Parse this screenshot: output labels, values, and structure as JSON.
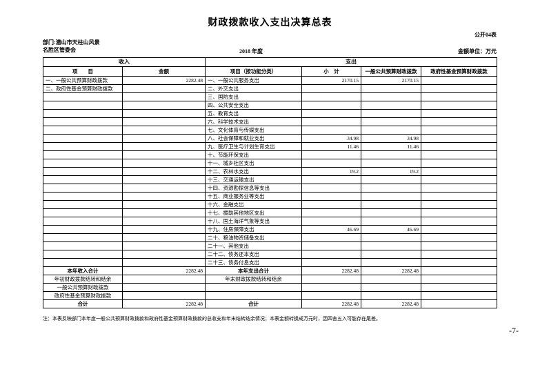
{
  "page": {
    "title": "财政拨款收入支出决算总表",
    "table_code": "公开04表",
    "department_line1": "部门:潜山市天柱山风景",
    "department_line2": "名胜区管委会",
    "year": "2018 年度",
    "unit": "金额单位：万元",
    "note": "注：本表反映部门本年度一般公共预算财政拨款和政府性基金预算财政拨款的总收支和年末结转结余情况；本表金额转换成万元时，因四舍五入可能存在尾差。",
    "page_number": "-7-"
  },
  "table": {
    "income_header": "收入",
    "expense_header": "支出",
    "columns": [
      "项　　目",
      "金额",
      "项目（按功能分类）",
      "小　计",
      "一般公共预算财政拨款",
      "政府性基金预算财政拨款"
    ],
    "rows": [
      {
        "style": "left",
        "income_item": "一、一般公共预算财政拨款",
        "income_amount": "2282.48",
        "expense_item": "一、一般公共服务支出",
        "subtotal": "2170.15",
        "general_budget": "2170.15",
        "gov_fund": ""
      },
      {
        "style": "left",
        "income_item": "二、政府性基金预算财政拨款",
        "income_amount": "",
        "expense_item": "二、外交支出",
        "subtotal": "",
        "general_budget": "",
        "gov_fund": ""
      },
      {
        "style": "left",
        "income_item": "",
        "income_amount": "",
        "expense_item": "三、国防支出",
        "subtotal": "",
        "general_budget": "",
        "gov_fund": ""
      },
      {
        "style": "left",
        "income_item": "",
        "income_amount": "",
        "expense_item": "四、公共安全支出",
        "subtotal": "",
        "general_budget": "",
        "gov_fund": ""
      },
      {
        "style": "left",
        "income_item": "",
        "income_amount": "",
        "expense_item": "五、教育支出",
        "subtotal": "",
        "general_budget": "",
        "gov_fund": ""
      },
      {
        "style": "left",
        "income_item": "",
        "income_amount": "",
        "expense_item": "六、科学技术支出",
        "subtotal": "",
        "general_budget": "",
        "gov_fund": ""
      },
      {
        "style": "left",
        "income_item": "",
        "income_amount": "",
        "expense_item": "七、文化体育与传媒支出",
        "subtotal": "",
        "general_budget": "",
        "gov_fund": ""
      },
      {
        "style": "left",
        "income_item": "",
        "income_amount": "",
        "expense_item": "八、社会保障和就业支出",
        "subtotal": "34.98",
        "general_budget": "34.98",
        "gov_fund": ""
      },
      {
        "style": "left",
        "income_item": "",
        "income_amount": "",
        "expense_item": "九、医疗卫生与计划生育支出",
        "subtotal": "11.46",
        "general_budget": "11.46",
        "gov_fund": ""
      },
      {
        "style": "left",
        "income_item": "",
        "income_amount": "",
        "expense_item": "十、节能环保支出",
        "subtotal": "",
        "general_budget": "",
        "gov_fund": ""
      },
      {
        "style": "left",
        "income_item": "",
        "income_amount": "",
        "expense_item": "十一、城乡社区支出",
        "subtotal": "",
        "general_budget": "",
        "gov_fund": ""
      },
      {
        "style": "left",
        "income_item": "",
        "income_amount": "",
        "expense_item": "十二、农林水支出",
        "subtotal": "19.2",
        "general_budget": "19.2",
        "gov_fund": ""
      },
      {
        "style": "left",
        "income_item": "",
        "income_amount": "",
        "expense_item": "十三、交通运输支出",
        "subtotal": "",
        "general_budget": "",
        "gov_fund": ""
      },
      {
        "style": "left",
        "income_item": "",
        "income_amount": "",
        "expense_item": "十四、资源勘探信息等支出",
        "subtotal": "",
        "general_budget": "",
        "gov_fund": ""
      },
      {
        "style": "left",
        "income_item": "",
        "income_amount": "",
        "expense_item": "十五、商业服务业等支出",
        "subtotal": "",
        "general_budget": "",
        "gov_fund": ""
      },
      {
        "style": "left",
        "income_item": "",
        "income_amount": "",
        "expense_item": "十六、金融支出",
        "subtotal": "",
        "general_budget": "",
        "gov_fund": ""
      },
      {
        "style": "left",
        "income_item": "",
        "income_amount": "",
        "expense_item": "十七、援助其他地区支出",
        "subtotal": "",
        "general_budget": "",
        "gov_fund": ""
      },
      {
        "style": "left",
        "income_item": "",
        "income_amount": "",
        "expense_item": "十八、国土海洋气象等支出",
        "subtotal": "",
        "general_budget": "",
        "gov_fund": ""
      },
      {
        "style": "left",
        "income_item": "",
        "income_amount": "",
        "expense_item": "十九、住房保障支出",
        "subtotal": "46.69",
        "general_budget": "46.69",
        "gov_fund": ""
      },
      {
        "style": "left",
        "income_item": "",
        "income_amount": "",
        "expense_item": "二十、粮油物资储备支出",
        "subtotal": "",
        "general_budget": "",
        "gov_fund": ""
      },
      {
        "style": "left",
        "income_item": "",
        "income_amount": "",
        "expense_item": "二十一、其他支出",
        "subtotal": "",
        "general_budget": "",
        "gov_fund": ""
      },
      {
        "style": "left",
        "income_item": "",
        "income_amount": "",
        "expense_item": "二十二、债务还本支出",
        "subtotal": "",
        "general_budget": "",
        "gov_fund": ""
      },
      {
        "style": "left",
        "income_item": "",
        "income_amount": "",
        "expense_item": "二十三、债务付息支出",
        "subtotal": "",
        "general_budget": "",
        "gov_fund": ""
      },
      {
        "style": "total",
        "income_item": "本年收入合计",
        "income_amount": "2282.48",
        "expense_item": "本年支出合计",
        "subtotal": "2282.48",
        "general_budget": "2282.48",
        "gov_fund": ""
      },
      {
        "style": "center",
        "income_item": "年初财政拨款结转和结余",
        "income_amount": "",
        "expense_item": "年末财政拨款结转和结余",
        "subtotal": "",
        "general_budget": "",
        "gov_fund": ""
      },
      {
        "style": "center",
        "income_item": "一般公共预算财政拨款",
        "income_amount": "",
        "expense_item": "",
        "subtotal": "",
        "general_budget": "",
        "gov_fund": ""
      },
      {
        "style": "center",
        "income_item": "政府性基金预算财政拨款",
        "income_amount": "",
        "expense_item": "",
        "subtotal": "",
        "general_budget": "",
        "gov_fund": ""
      },
      {
        "style": "total",
        "income_item": "合计",
        "income_amount": "2282.48",
        "expense_item": "合计",
        "subtotal": "2282.48",
        "general_budget": "2282.48",
        "gov_fund": ""
      }
    ]
  }
}
